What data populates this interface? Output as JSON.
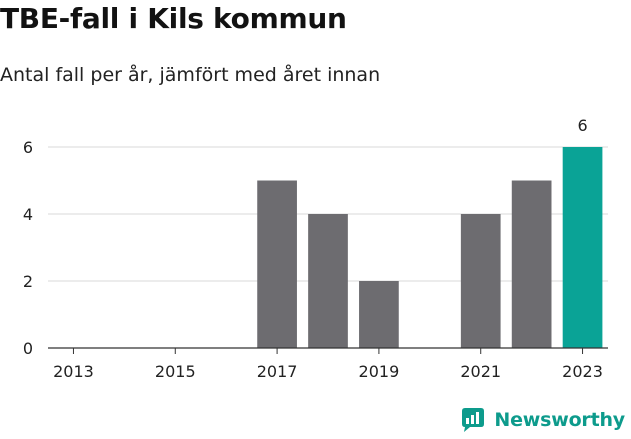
{
  "header": {
    "title": "TBE-fall i Kils kommun",
    "subtitle": "Antal fall per år, jämfört med året innan"
  },
  "brand": {
    "name": "Newsworthy"
  },
  "colors": {
    "bar": "#6d6c70",
    "highlight": "#0aa396",
    "grid": "#d9d9d9",
    "axis": "#333333",
    "brand": "#0d9b8c"
  },
  "chart_data": {
    "type": "bar",
    "categories": [
      "2013",
      "2014",
      "2015",
      "2016",
      "2017",
      "2018",
      "2019",
      "2020",
      "2021",
      "2022",
      "2023"
    ],
    "values": [
      0,
      0,
      0,
      0,
      5,
      4,
      2,
      0,
      4,
      5,
      6
    ],
    "highlight_index": 10,
    "data_labels": [
      {
        "index": 10,
        "text": "6"
      }
    ],
    "x_tick_labels": [
      "2013",
      "2015",
      "2017",
      "2019",
      "2021",
      "2023"
    ],
    "y_ticks": [
      0,
      2,
      4,
      6
    ],
    "ylim": [
      0,
      6
    ],
    "grid": true,
    "legend": false
  }
}
